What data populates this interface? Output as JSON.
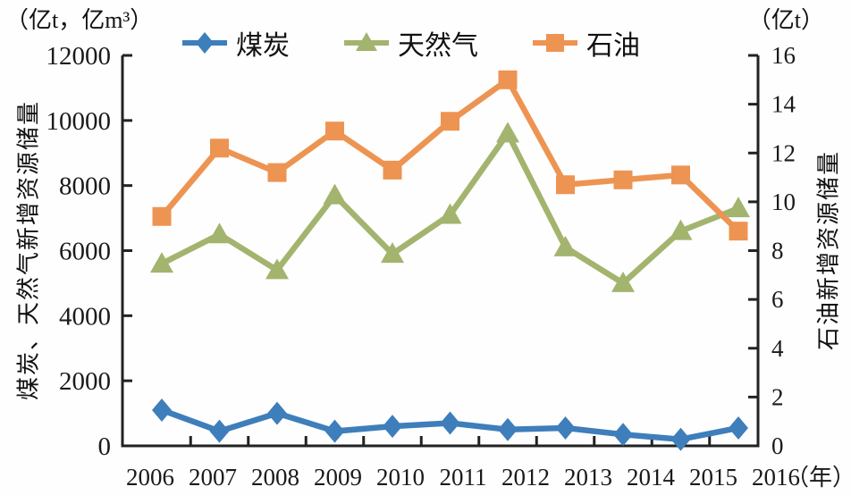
{
  "chart_data": {
    "type": "line",
    "title": "",
    "unit_label_left": "（亿t，亿m³）",
    "unit_label_right": "（亿t）",
    "x_axis_suffix": "（年）",
    "categories": [
      "2006",
      "2007",
      "2008",
      "2009",
      "2010",
      "2011",
      "2012",
      "2013",
      "2014",
      "2015",
      "2016"
    ],
    "y_left": {
      "label": "煤炭、天然气新增资源储量",
      "min": 0,
      "max": 12000,
      "ticks": [
        0,
        2000,
        4000,
        6000,
        8000,
        10000,
        12000
      ]
    },
    "y_right": {
      "label": "石油新增资源储量",
      "min": 0,
      "max": 16,
      "ticks": [
        0,
        2,
        4,
        6,
        8,
        10,
        12,
        14,
        16
      ]
    },
    "grid": false,
    "legend_position": "top",
    "axis_color": "#222222",
    "series": [
      {
        "id": "coal",
        "name": "煤炭",
        "axis": "left",
        "marker": "diamond",
        "color": "#3E7EBB",
        "values": [
          1100,
          450,
          1000,
          450,
          600,
          700,
          500,
          550,
          350,
          200,
          550
        ]
      },
      {
        "id": "gas",
        "name": "天然气",
        "axis": "left",
        "marker": "triangle",
        "color": "#A2B46E",
        "values": [
          5600,
          6500,
          5400,
          7700,
          5900,
          7100,
          9600,
          6100,
          5000,
          6600,
          7300
        ]
      },
      {
        "id": "oil",
        "name": "石油",
        "axis": "right",
        "marker": "square",
        "color": "#ED9453",
        "values": [
          9.4,
          12.2,
          11.2,
          12.9,
          11.3,
          13.3,
          15.0,
          10.7,
          10.9,
          11.1,
          8.8
        ]
      }
    ]
  }
}
